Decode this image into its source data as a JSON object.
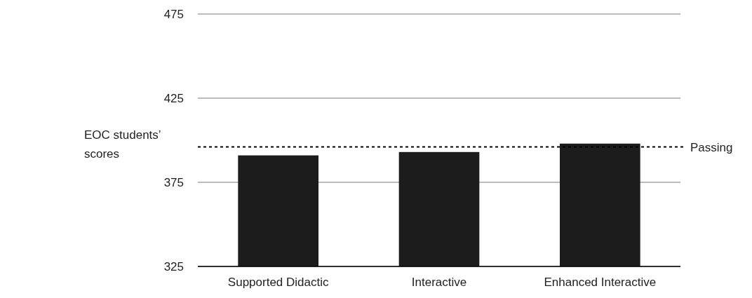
{
  "chart_data": {
    "type": "bar",
    "ylabel": "EOC students’ scores",
    "categories": [
      "Supported Didactic",
      "Interactive",
      "Enhanced Interactive"
    ],
    "values": [
      391,
      393,
      398
    ],
    "color": "#1c1c1c",
    "ylim": [
      325,
      475
    ],
    "yticks": [
      325,
      375,
      425,
      475
    ],
    "grid": "y",
    "ref_lines": [
      {
        "axis": "y",
        "value": 396,
        "label": "Passing",
        "color": "#000000",
        "line_style": "dashed"
      }
    ]
  }
}
